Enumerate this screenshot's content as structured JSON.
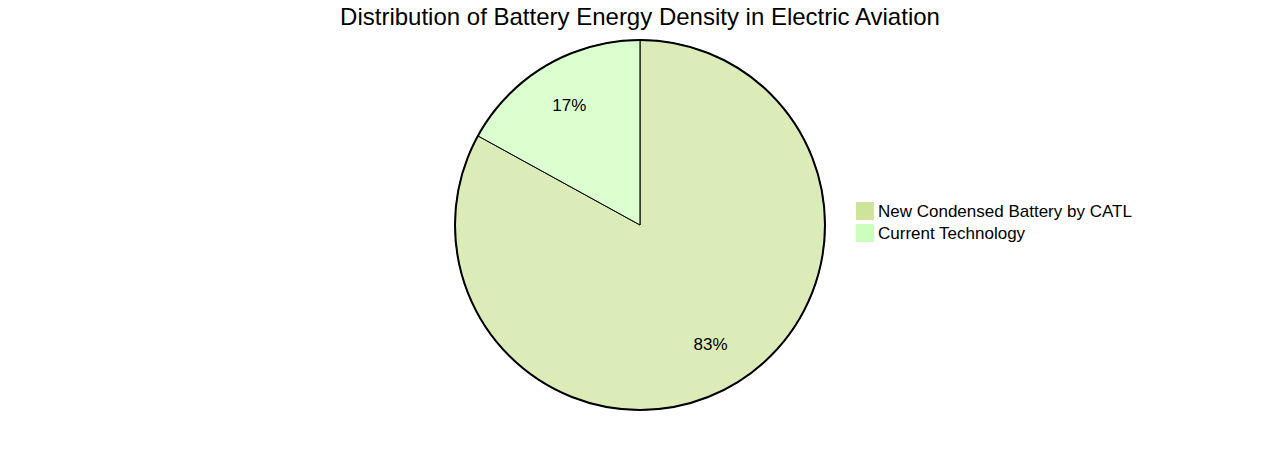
{
  "chart_data": {
    "type": "pie",
    "title": "Distribution of Battery Energy Density in Electric Aviation",
    "categories": [
      "New Condensed Battery by CATL",
      "Current Technology"
    ],
    "values": [
      83,
      17
    ],
    "value_labels": [
      "83%",
      "17%"
    ],
    "colors": [
      "#cde49b",
      "#ccffbb"
    ],
    "data_labels": true,
    "legend": "right"
  }
}
